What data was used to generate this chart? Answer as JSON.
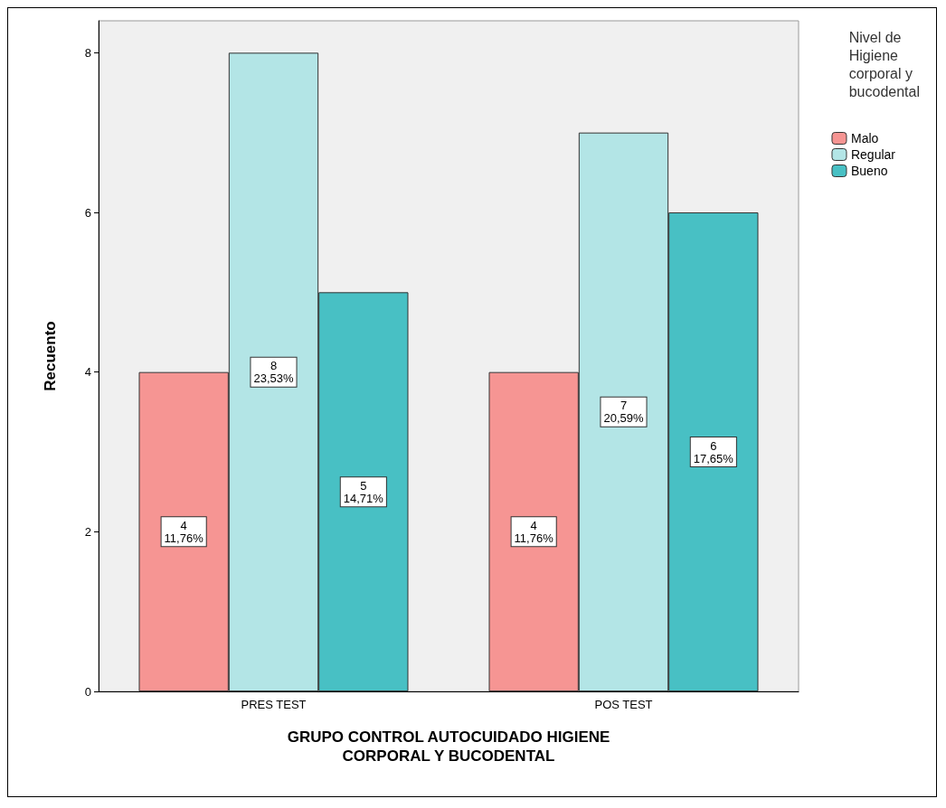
{
  "chart_data": {
    "type": "bar",
    "xlabel": "GRUPO CONTROL AUTOCUIDADO HIGIENE\nCORPORAL Y BUCODENTAL",
    "ylabel": "Recuento",
    "legend_title": "Nivel de\nHigiene\ncorporal y\nbucodental",
    "categories": [
      "PRES TEST",
      "POS TEST"
    ],
    "series": [
      {
        "name": "Malo",
        "color": "#f69593",
        "values": [
          4,
          4
        ],
        "value_labels": [
          "4\n11,76%",
          "4\n11,76%"
        ]
      },
      {
        "name": "Regular",
        "color": "#b3e5e6",
        "values": [
          8,
          7
        ],
        "value_labels": [
          "8\n23,53%",
          "7\n20,59%"
        ]
      },
      {
        "name": "Bueno",
        "color": "#48c0c4",
        "values": [
          5,
          6
        ],
        "value_labels": [
          "5\n14,71%",
          "6\n17,65%"
        ]
      }
    ],
    "ylim": [
      0,
      8.4
    ],
    "yticks": [
      0,
      2,
      4,
      6,
      8
    ],
    "grid": false,
    "legend": "right top"
  }
}
